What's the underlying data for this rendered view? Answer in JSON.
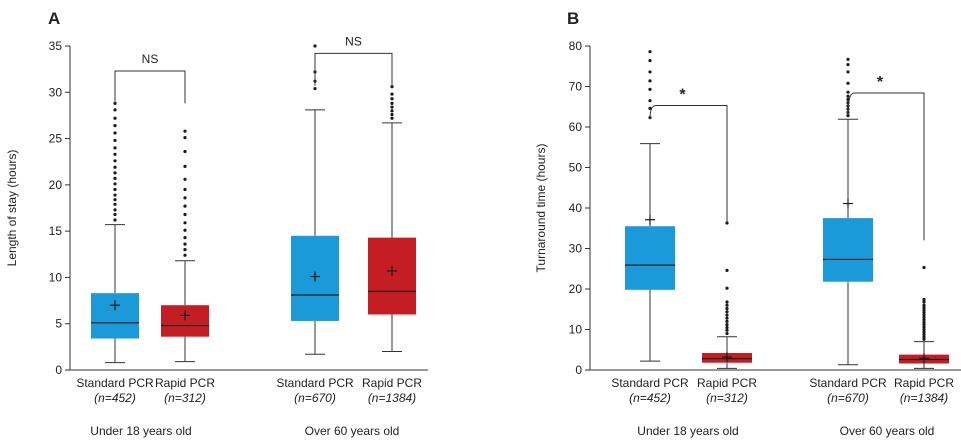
{
  "colors": {
    "standard": "#1a9ad8",
    "rapid": "#c41e24",
    "axis": "#333333"
  },
  "chart_data": [
    {
      "type": "box",
      "panel_label": "A",
      "ylabel": "Length of stay (hours)",
      "ylim": [
        0,
        35
      ],
      "yticks": [
        0,
        5,
        10,
        15,
        20,
        25,
        30,
        35
      ],
      "groups": [
        "Under 18 years old",
        "Over 60 years old"
      ],
      "series": [
        {
          "label": "Standard PCR",
          "n": "(n=452)",
          "group": 0,
          "color": "standard",
          "min": 0.8,
          "q1": 3.4,
          "median": 5.1,
          "q3": 8.3,
          "max": 15.7,
          "mean": 7.0,
          "outliers": [
            16.2,
            16.8,
            17.3,
            17.9,
            18.4,
            18.9,
            19.5,
            20.1,
            20.7,
            21.3,
            21.9,
            22.6,
            23.3,
            24.0,
            24.8,
            25.6,
            26.4,
            27.2,
            28.1,
            28.8
          ]
        },
        {
          "label": "Rapid PCR",
          "n": "(n=312)",
          "group": 0,
          "color": "rapid",
          "min": 0.9,
          "q1": 3.6,
          "median": 4.8,
          "q3": 7.0,
          "max": 11.8,
          "mean": 5.9,
          "outliers": [
            12.4,
            13.0,
            13.6,
            14.3,
            15.1,
            15.9,
            16.8,
            17.7,
            18.6,
            19.5,
            20.6,
            22.0,
            23.6,
            25.1,
            25.8
          ]
        },
        {
          "label": "Standard PCR",
          "n": "(n=670)",
          "group": 1,
          "color": "standard",
          "min": 1.7,
          "q1": 5.3,
          "median": 8.1,
          "q3": 14.5,
          "max": 28.1,
          "mean": 10.1,
          "outliers": [
            30.4,
            31.2,
            32.2,
            35.0
          ]
        },
        {
          "label": "Rapid PCR",
          "n": "(n=1384)",
          "group": 1,
          "color": "rapid",
          "min": 2.0,
          "q1": 6.0,
          "median": 8.5,
          "q3": 14.3,
          "max": 26.7,
          "mean": 10.7,
          "outliers": [
            27.2,
            27.6,
            28.0,
            28.4,
            28.8,
            29.3,
            29.8,
            30.6
          ]
        }
      ],
      "brackets": [
        {
          "from": 0,
          "to": 1,
          "label": "NS",
          "y": 32.3
        },
        {
          "from": 2,
          "to": 3,
          "label": "NS",
          "y": 34.2
        }
      ]
    },
    {
      "type": "box",
      "panel_label": "B",
      "ylabel": "Turnaround time (hours)",
      "ylim": [
        0,
        80
      ],
      "yticks": [
        0,
        10,
        20,
        30,
        40,
        50,
        60,
        70,
        80
      ],
      "groups": [
        "Under 18 years old",
        "Over 60 years old"
      ],
      "series": [
        {
          "label": "Standard PCR",
          "n": "(n=452)",
          "group": 0,
          "color": "standard",
          "min": 2.2,
          "q1": 19.8,
          "median": 25.9,
          "q3": 35.5,
          "max": 55.9,
          "mean": 37.1,
          "outliers": [
            62.3,
            64.6,
            66.5,
            69.3,
            71.4,
            73.6,
            76.4,
            78.6
          ]
        },
        {
          "label": "Rapid PCR",
          "n": "(n=312)",
          "group": 0,
          "color": "rapid",
          "min": 0.4,
          "q1": 1.8,
          "median": 2.8,
          "q3": 4.2,
          "max": 8.2,
          "mean": 3.2,
          "outliers": [
            9.0,
            9.8,
            10.5,
            11.2,
            12.0,
            12.8,
            13.6,
            14.4,
            15.2,
            16.0,
            16.8,
            20.2,
            24.6,
            36.3
          ]
        },
        {
          "label": "Standard PCR",
          "n": "(n=670)",
          "group": 1,
          "color": "standard",
          "min": 1.3,
          "q1": 21.8,
          "median": 27.3,
          "q3": 37.5,
          "max": 61.9,
          "mean": 41.1,
          "outliers": [
            62.8,
            63.6,
            64.4,
            65.2,
            66.0,
            66.8,
            67.6,
            68.6,
            70.8,
            73.6,
            75.4,
            76.7
          ]
        },
        {
          "label": "Rapid PCR",
          "n": "(n=1384)",
          "group": 1,
          "color": "rapid",
          "min": 0.4,
          "q1": 1.6,
          "median": 2.6,
          "q3": 3.8,
          "max": 7.0,
          "mean": 2.9,
          "outliers": [
            7.6,
            8.2,
            8.8,
            9.4,
            10.0,
            10.6,
            11.2,
            11.8,
            12.4,
            13.0,
            13.6,
            14.2,
            14.8,
            15.4,
            16.0,
            16.8,
            17.4,
            25.3
          ]
        }
      ],
      "brackets": [
        {
          "from": 0,
          "to": 1,
          "label": "*",
          "start_y": 62.0,
          "y": 65.3,
          "end_y": 36.5
        },
        {
          "from": 2,
          "to": 3,
          "label": "*",
          "start_y": 62.8,
          "y": 68.4,
          "end_y": 32.0
        }
      ]
    }
  ]
}
